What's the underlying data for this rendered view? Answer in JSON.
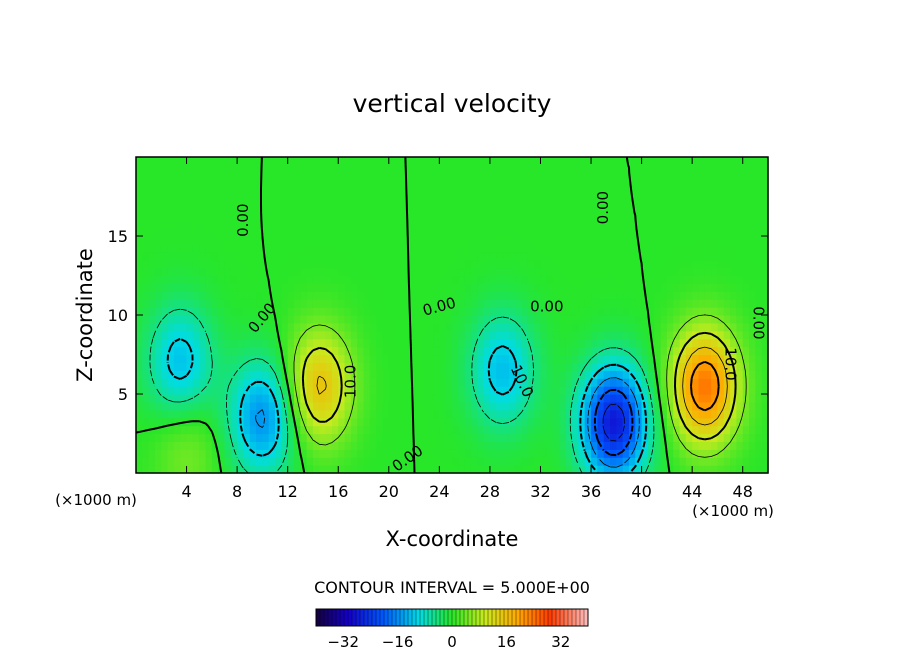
{
  "chart_data": {
    "type": "heatmap",
    "title": "vertical velocity",
    "xlabel": "X-coordinate",
    "ylabel": "Z-coordinate",
    "x_unit": "(×1000 m)",
    "y_unit": "(×1000 m)",
    "xlim": [
      0,
      50
    ],
    "ylim": [
      0,
      20
    ],
    "x_ticks": [
      4,
      8,
      12,
      16,
      20,
      24,
      28,
      32,
      36,
      40,
      44,
      48
    ],
    "y_ticks": [
      5,
      10,
      15
    ],
    "contour_interval_text": "CONTOUR INTERVAL = 5.000E+00",
    "contour_interval": 5,
    "contour_labels": [
      "0.00",
      "0.00",
      "0.00",
      "0.00",
      "0.00",
      "0.00",
      "0.00",
      "10.0",
      "10.0",
      "10.0"
    ],
    "colorbar": {
      "range": [
        -40,
        40
      ],
      "ticks": [
        -32,
        -16,
        0,
        16,
        32
      ],
      "tick_labels": [
        "−32",
        "−16",
        "0",
        "16",
        "32"
      ]
    },
    "field_extrema": [
      {
        "x": 3.5,
        "z": 7.0,
        "value": -12
      },
      {
        "x": 10.0,
        "z": 3.5,
        "value": -16
      },
      {
        "x": 14.5,
        "z": 5.5,
        "value": 16
      },
      {
        "x": 29.0,
        "z": 6.5,
        "value": -12
      },
      {
        "x": 37.8,
        "z": 3.2,
        "value": -28
      },
      {
        "x": 45.0,
        "z": 5.5,
        "value": 24
      },
      {
        "x": 4.0,
        "z": 1.5,
        "value": 5
      }
    ]
  }
}
